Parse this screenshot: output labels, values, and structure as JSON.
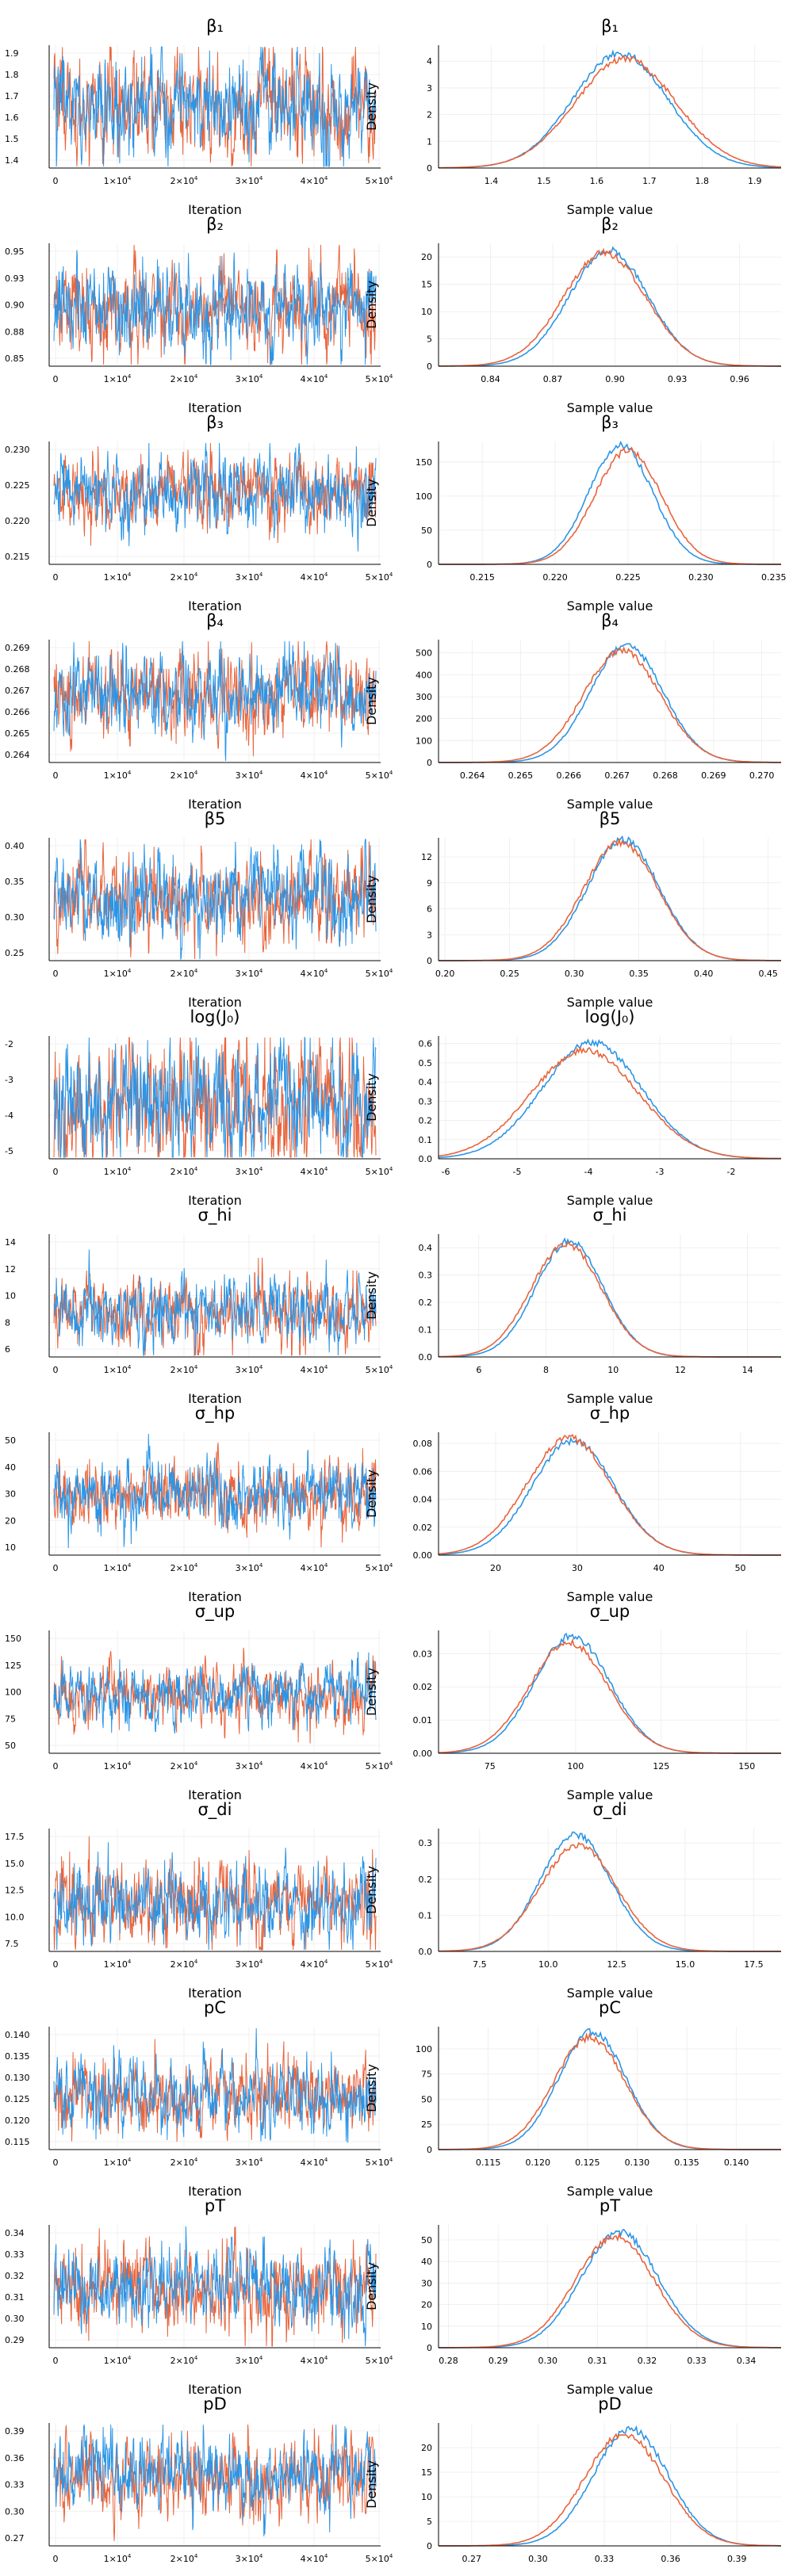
{
  "figure": {
    "trace_xlabel": "Iteration",
    "density_xlabel": "Sample value",
    "density_ylabel": "Density"
  },
  "colors": {
    "chain1": "#2b95e6",
    "chain2": "#e8643c",
    "axis": "#000000",
    "grid": "#ececec"
  },
  "chart_data": [
    {
      "type": "line",
      "title": "β₁",
      "trace": {
        "xlabel": "Iteration",
        "xlim": [
          0,
          50000
        ],
        "xticks": [
          "0",
          "1×10⁴",
          "2×10⁴",
          "3×10⁴",
          "4×10⁴",
          "5×10⁴"
        ],
        "yticks": [
          "1.9",
          "1.8",
          "1.7",
          "1.6",
          "1.5",
          "1.4"
        ],
        "ylim": [
          1.35,
          1.95
        ]
      },
      "density": {
        "xlabel": "Sample value",
        "ylabel": "Density",
        "xticks": [
          "1.4",
          "1.5",
          "1.6",
          "1.7",
          "1.8",
          "1.9"
        ],
        "xlim": [
          1.3,
          1.95
        ],
        "yticks": [
          "0",
          "1",
          "2",
          "3",
          "4"
        ],
        "ylim": [
          0,
          4.6
        ],
        "series": [
          {
            "mean": 1.645,
            "sd": 0.09,
            "peak": 4.25
          },
          {
            "mean": 1.655,
            "sd": 0.095,
            "peak": 4.05
          }
        ]
      }
    },
    {
      "type": "line",
      "title": "β₂",
      "trace": {
        "xlabel": "Iteration",
        "xlim": [
          0,
          50000
        ],
        "xticks": [
          "0",
          "1×10⁴",
          "2×10⁴",
          "3×10⁴",
          "4×10⁴",
          "5×10⁴"
        ],
        "yticks": [
          "0.95",
          "0.93",
          "0.90",
          "0.88",
          "0.85"
        ],
        "ylim": [
          0.83,
          0.97
        ]
      },
      "density": {
        "xlabel": "Sample value",
        "ylabel": "Density",
        "xticks": [
          "0.84",
          "0.87",
          "0.90",
          "0.93",
          "0.96"
        ],
        "xlim": [
          0.815,
          0.98
        ],
        "yticks": [
          "0",
          "5",
          "10",
          "15",
          "20"
        ],
        "ylim": [
          0,
          22.5
        ],
        "series": [
          {
            "mean": 0.897,
            "sd": 0.019,
            "peak": 21
          },
          {
            "mean": 0.895,
            "sd": 0.02,
            "peak": 20.5
          }
        ]
      }
    },
    {
      "type": "line",
      "title": "β₃",
      "trace": {
        "xlabel": "Iteration",
        "xlim": [
          0,
          50000
        ],
        "xticks": [
          "0",
          "1×10⁴",
          "2×10⁴",
          "3×10⁴",
          "4×10⁴",
          "5×10⁴"
        ],
        "yticks": [
          "0.230",
          "0.225",
          "0.220",
          "0.215"
        ],
        "ylim": [
          0.213,
          0.233
        ]
      },
      "density": {
        "xlabel": "Sample value",
        "ylabel": "Density",
        "xticks": [
          "0.215",
          "0.220",
          "0.225",
          "0.230",
          "0.235"
        ],
        "xlim": [
          0.212,
          0.2355
        ],
        "yticks": [
          "0",
          "50",
          "100",
          "150"
        ],
        "ylim": [
          0,
          180
        ],
        "series": [
          {
            "mean": 0.2245,
            "sd": 0.0022,
            "peak": 172
          },
          {
            "mean": 0.225,
            "sd": 0.0023,
            "peak": 165
          }
        ]
      }
    },
    {
      "type": "line",
      "title": "β₄",
      "trace": {
        "xlabel": "Iteration",
        "xlim": [
          0,
          50000
        ],
        "xticks": [
          "0",
          "1×10⁴",
          "2×10⁴",
          "3×10⁴",
          "4×10⁴",
          "5×10⁴"
        ],
        "yticks": [
          "0.269",
          "0.268",
          "0.267",
          "0.266",
          "0.265",
          "0.264"
        ],
        "ylim": [
          0.2638,
          0.2698
        ]
      },
      "density": {
        "xlabel": "Sample value",
        "ylabel": "Density",
        "xticks": [
          "0.264",
          "0.265",
          "0.266",
          "0.267",
          "0.268",
          "0.269",
          "0.270"
        ],
        "xlim": [
          0.2633,
          0.2704
        ],
        "yticks": [
          "0",
          "100",
          "200",
          "300",
          "400",
          "500"
        ],
        "ylim": [
          0,
          560
        ],
        "series": [
          {
            "mean": 0.2672,
            "sd": 0.00075,
            "peak": 530
          },
          {
            "mean": 0.2671,
            "sd": 0.0008,
            "peak": 505
          }
        ]
      }
    },
    {
      "type": "line",
      "title": "β5",
      "trace": {
        "xlabel": "Iteration",
        "xlim": [
          0,
          50000
        ],
        "xticks": [
          "0",
          "1×10⁴",
          "2×10⁴",
          "3×10⁴",
          "4×10⁴",
          "5×10⁴"
        ],
        "yticks": [
          "0.40",
          "0.35",
          "0.30",
          "0.25"
        ],
        "ylim": [
          0.23,
          0.44
        ]
      },
      "density": {
        "xlabel": "Sample value",
        "ylabel": "Density",
        "xticks": [
          "0.20",
          "0.25",
          "0.30",
          "0.35",
          "0.40",
          "0.45"
        ],
        "xlim": [
          0.195,
          0.46
        ],
        "yticks": [
          "0",
          "3",
          "6",
          "9",
          "12"
        ],
        "ylim": [
          0,
          14.2
        ],
        "series": [
          {
            "mean": 0.338,
            "sd": 0.028,
            "peak": 13.8
          },
          {
            "mean": 0.336,
            "sd": 0.029,
            "peak": 13.5
          }
        ]
      }
    },
    {
      "type": "line",
      "title": "log(J₀)",
      "trace": {
        "xlabel": "Iteration",
        "xlim": [
          0,
          50000
        ],
        "xticks": [
          "0",
          "1×10⁴",
          "2×10⁴",
          "3×10⁴",
          "4×10⁴",
          "5×10⁴"
        ],
        "yticks": [
          "-2",
          "-3",
          "-4",
          "-5"
        ],
        "ylim": [
          -5.8,
          -1.8
        ]
      },
      "density": {
        "xlabel": "Sample value",
        "ylabel": "Density",
        "xticks": [
          "-6",
          "-5",
          "-4",
          "-3",
          "-2"
        ],
        "xlim": [
          -6.1,
          -1.3
        ],
        "yticks": [
          "0.0",
          "0.1",
          "0.2",
          "0.3",
          "0.4",
          "0.5",
          "0.6"
        ],
        "ylim": [
          0,
          0.64
        ],
        "series": [
          {
            "mean": -3.95,
            "sd": 0.7,
            "peak": 0.6
          },
          {
            "mean": -4.05,
            "sd": 0.75,
            "peak": 0.56
          }
        ]
      }
    },
    {
      "type": "line",
      "title": "σ_hi",
      "trace": {
        "xlabel": "Iteration",
        "xlim": [
          0,
          50000
        ],
        "xticks": [
          "0",
          "1×10⁴",
          "2×10⁴",
          "3×10⁴",
          "4×10⁴",
          "5×10⁴"
        ],
        "yticks": [
          "14",
          "12",
          "10",
          "8",
          "6"
        ],
        "ylim": [
          5.2,
          14.8
        ]
      },
      "density": {
        "xlabel": "Sample value",
        "ylabel": "Density",
        "xticks": [
          "6",
          "8",
          "10",
          "12",
          "14"
        ],
        "xlim": [
          4.8,
          15
        ],
        "yticks": [
          "0.0",
          "0.1",
          "0.2",
          "0.3",
          "0.4"
        ],
        "ylim": [
          0,
          0.45
        ],
        "series": [
          {
            "mean": 8.7,
            "sd": 1.0,
            "peak": 0.42
          },
          {
            "mean": 8.6,
            "sd": 1.05,
            "peak": 0.41
          }
        ]
      }
    },
    {
      "type": "line",
      "title": "σ_hp",
      "trace": {
        "xlabel": "Iteration",
        "xlim": [
          0,
          50000
        ],
        "xticks": [
          "0",
          "1×10⁴",
          "2×10⁴",
          "3×10⁴",
          "4×10⁴",
          "5×10⁴"
        ],
        "yticks": [
          "50",
          "40",
          "30",
          "20",
          "10"
        ],
        "ylim": [
          6,
          55
        ]
      },
      "density": {
        "xlabel": "Sample value",
        "ylabel": "Density",
        "xticks": [
          "20",
          "30",
          "40",
          "50"
        ],
        "xlim": [
          13,
          55
        ],
        "yticks": [
          "0.00",
          "0.02",
          "0.04",
          "0.06",
          "0.08"
        ],
        "ylim": [
          0,
          0.088
        ],
        "series": [
          {
            "mean": 29.5,
            "sd": 5.0,
            "peak": 0.081
          },
          {
            "mean": 29.0,
            "sd": 5.2,
            "peak": 0.083
          }
        ]
      }
    },
    {
      "type": "line",
      "title": "σ_up",
      "trace": {
        "xlabel": "Iteration",
        "xlim": [
          0,
          50000
        ],
        "xticks": [
          "0",
          "1×10⁴",
          "2×10⁴",
          "3×10⁴",
          "4×10⁴",
          "5×10⁴"
        ],
        "yticks": [
          "150",
          "125",
          "100",
          "75",
          "50"
        ],
        "ylim": [
          42,
          162
        ]
      },
      "density": {
        "xlabel": "Sample value",
        "ylabel": "Density",
        "xticks": [
          "75",
          "100",
          "125",
          "150"
        ],
        "xlim": [
          60,
          160
        ],
        "yticks": [
          "0.00",
          "0.01",
          "0.02",
          "0.03"
        ],
        "ylim": [
          0,
          0.037
        ],
        "series": [
          {
            "mean": 99,
            "sd": 11,
            "peak": 0.035
          },
          {
            "mean": 98,
            "sd": 11.5,
            "peak": 0.033
          }
        ]
      }
    },
    {
      "type": "line",
      "title": "σ_di",
      "trace": {
        "xlabel": "Iteration",
        "xlim": [
          0,
          50000
        ],
        "xticks": [
          "0",
          "1×10⁴",
          "2×10⁴",
          "3×10⁴",
          "4×10⁴",
          "5×10⁴"
        ],
        "yticks": [
          "17.5",
          "15.0",
          "12.5",
          "10.0",
          "7.5"
        ],
        "ylim": [
          6.5,
          18
        ]
      },
      "density": {
        "xlabel": "Sample value",
        "ylabel": "Density",
        "xticks": [
          "7.5",
          "10.0",
          "12.5",
          "15.0",
          "17.5"
        ],
        "xlim": [
          6,
          18.5
        ],
        "yticks": [
          "0.0",
          "0.1",
          "0.2",
          "0.3"
        ],
        "ylim": [
          0,
          0.34
        ],
        "series": [
          {
            "mean": 11.0,
            "sd": 1.3,
            "peak": 0.32
          },
          {
            "mean": 11.1,
            "sd": 1.4,
            "peak": 0.29
          }
        ]
      }
    },
    {
      "type": "line",
      "title": "pC",
      "trace": {
        "xlabel": "Iteration",
        "xlim": [
          0,
          50000
        ],
        "xticks": [
          "0",
          "1×10⁴",
          "2×10⁴",
          "3×10⁴",
          "4×10⁴",
          "5×10⁴"
        ],
        "yticks": [
          "0.140",
          "0.135",
          "0.130",
          "0.125",
          "0.120",
          "0.115"
        ],
        "ylim": [
          0.112,
          0.143
        ]
      },
      "density": {
        "xlabel": "Sample value",
        "ylabel": "Density",
        "xticks": [
          "0.115",
          "0.120",
          "0.125",
          "0.130",
          "0.135",
          "0.140"
        ],
        "xlim": [
          0.11,
          0.1445
        ],
        "yticks": [
          "0",
          "25",
          "50",
          "75",
          "100"
        ],
        "ylim": [
          0,
          122
        ],
        "series": [
          {
            "mean": 0.1255,
            "sd": 0.0034,
            "peak": 116
          },
          {
            "mean": 0.1252,
            "sd": 0.0036,
            "peak": 110
          }
        ]
      }
    },
    {
      "type": "line",
      "title": "pT",
      "trace": {
        "xlabel": "Iteration",
        "xlim": [
          0,
          50000
        ],
        "xticks": [
          "0",
          "1×10⁴",
          "2×10⁴",
          "3×10⁴",
          "4×10⁴",
          "5×10⁴"
        ],
        "yticks": [
          "0.34",
          "0.33",
          "0.32",
          "0.31",
          "0.30",
          "0.29"
        ],
        "ylim": [
          0.285,
          0.345
        ]
      },
      "density": {
        "xlabel": "Sample value",
        "ylabel": "Density",
        "xticks": [
          "0.28",
          "0.29",
          "0.30",
          "0.31",
          "0.32",
          "0.33",
          "0.34"
        ],
        "xlim": [
          0.278,
          0.347
        ],
        "yticks": [
          "0",
          "10",
          "20",
          "30",
          "40",
          "50"
        ],
        "ylim": [
          0,
          57
        ],
        "series": [
          {
            "mean": 0.3145,
            "sd": 0.0078,
            "peak": 53
          },
          {
            "mean": 0.3135,
            "sd": 0.008,
            "peak": 51
          }
        ]
      }
    },
    {
      "type": "line",
      "title": "pD",
      "trace": {
        "xlabel": "Iteration",
        "xlim": [
          0,
          50000
        ],
        "xticks": [
          "0",
          "1×10⁴",
          "2×10⁴",
          "3×10⁴",
          "4×10⁴",
          "5×10⁴"
        ],
        "yticks": [
          "0.39",
          "0.36",
          "0.33",
          "0.30",
          "0.27"
        ],
        "ylim": [
          0.26,
          0.4
        ]
      },
      "density": {
        "xlabel": "Sample value",
        "ylabel": "Density",
        "xticks": [
          "0.27",
          "0.30",
          "0.33",
          "0.36",
          "0.39"
        ],
        "xlim": [
          0.255,
          0.41
        ],
        "yticks": [
          "0",
          "5",
          "10",
          "15",
          "20"
        ],
        "ylim": [
          0,
          25
        ],
        "series": [
          {
            "mean": 0.342,
            "sd": 0.017,
            "peak": 23.5
          },
          {
            "mean": 0.339,
            "sd": 0.018,
            "peak": 22.5
          }
        ]
      }
    }
  ]
}
